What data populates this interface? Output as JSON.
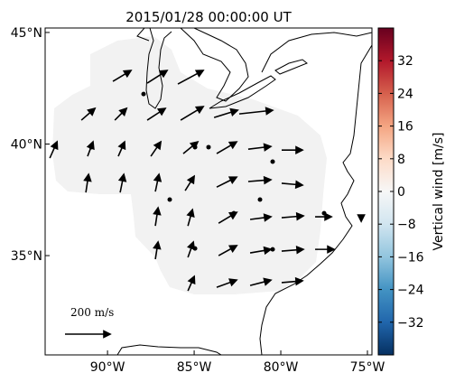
{
  "chart_data": {
    "type": "quiver",
    "title": "2015/01/28 00:00:00 UT",
    "xlim": [
      -93.6,
      -74.74
    ],
    "ylim": [
      30.55,
      45.2
    ],
    "xticks": [
      {
        "value": -90,
        "label": "90°W"
      },
      {
        "value": -85,
        "label": "85°W"
      },
      {
        "value": -80,
        "label": "80°W"
      },
      {
        "value": -75,
        "label": "75°W"
      }
    ],
    "yticks": [
      {
        "value": 45,
        "label": "45°N"
      },
      {
        "value": 40,
        "label": "40°N"
      },
      {
        "value": 35,
        "label": "35°N"
      }
    ],
    "vectors": {
      "lon": [
        -89.69,
        -87.71,
        -85.94,
        -91.51,
        -89.58,
        -87.71,
        -85.78,
        -83.85,
        -82.4,
        -93.33,
        -91.15,
        -89.38,
        -87.5,
        -85.63,
        -83.7,
        -81.88,
        -79.95,
        -91.25,
        -89.27,
        -87.24,
        -85.52,
        -83.7,
        -81.88,
        -79.95,
        -87.24,
        -85.36,
        -83.59,
        -81.77,
        -79.95,
        -78.02,
        -75.36,
        -87.24,
        -85.36,
        -83.59,
        -81.77,
        -79.95,
        -78.02,
        -85.36,
        -83.7,
        -81.77,
        -79.95,
        -87.92,
        -90.94,
        -84.95,
        -84.17,
        -80.47,
        -86.41,
        -81.2,
        -82.71,
        -77.5,
        -84.95,
        -80.47
      ],
      "lat": [
        42.81,
        42.73,
        42.69,
        41.07,
        41.07,
        41.07,
        41.07,
        41.19,
        41.35,
        39.37,
        39.45,
        39.45,
        39.45,
        39.57,
        39.57,
        39.77,
        39.73,
        37.83,
        37.83,
        37.87,
        37.91,
        38.07,
        38.32,
        38.24,
        36.33,
        36.33,
        36.45,
        36.62,
        36.7,
        36.74,
        36.74,
        34.84,
        34.92,
        35.0,
        35.12,
        35.2,
        35.28,
        33.42,
        33.58,
        33.66,
        33.79,
        42.24,
        39.86,
        39.86,
        39.86,
        39.21,
        37.51,
        37.51,
        36.9,
        36.9,
        35.32,
        35.28
      ],
      "u": [
        80,
        88,
        112,
        60,
        52,
        80,
        100,
        104,
        148,
        32,
        24,
        28,
        44,
        64,
        88,
        100,
        92,
        12,
        16,
        16,
        40,
        88,
        100,
        92,
        12,
        20,
        80,
        92,
        96,
        72,
        0,
        12,
        24,
        80,
        92,
        96,
        84,
        28,
        88,
        92,
        92,
        0,
        0,
        0,
        0,
        0,
        0,
        0,
        0,
        0,
        0,
        0
      ],
      "v": [
        48,
        56,
        60,
        52,
        52,
        52,
        60,
        32,
        16,
        72,
        64,
        64,
        64,
        52,
        52,
        12,
        0,
        80,
        80,
        76,
        64,
        44,
        8,
        -8,
        80,
        72,
        48,
        12,
        8,
        0,
        -20,
        76,
        68,
        44,
        16,
        8,
        0,
        64,
        32,
        24,
        8,
        0,
        0,
        0,
        0,
        0,
        0,
        0,
        0,
        0,
        0,
        0
      ],
      "color": "#000000"
    },
    "reference": {
      "value": 200,
      "label": "200 m/s"
    },
    "colorbar": {
      "label": "Vertical wind [m/s]",
      "clim": [
        -40,
        40
      ],
      "ticks": [
        32,
        24,
        16,
        8,
        0,
        {
          "value": -8,
          "label": "−8"
        },
        {
          "value": -16,
          "label": "−16"
        },
        {
          "value": -24,
          "label": "−24"
        },
        {
          "value": -32,
          "label": "−32"
        }
      ],
      "colors": [
        "#053061",
        "#2166ac",
        "#4393c3",
        "#92c5de",
        "#d1e5f0",
        "#f7f7f7",
        "#fddbc7",
        "#f4a582",
        "#d6604d",
        "#b2182b",
        "#67001f"
      ]
    }
  }
}
